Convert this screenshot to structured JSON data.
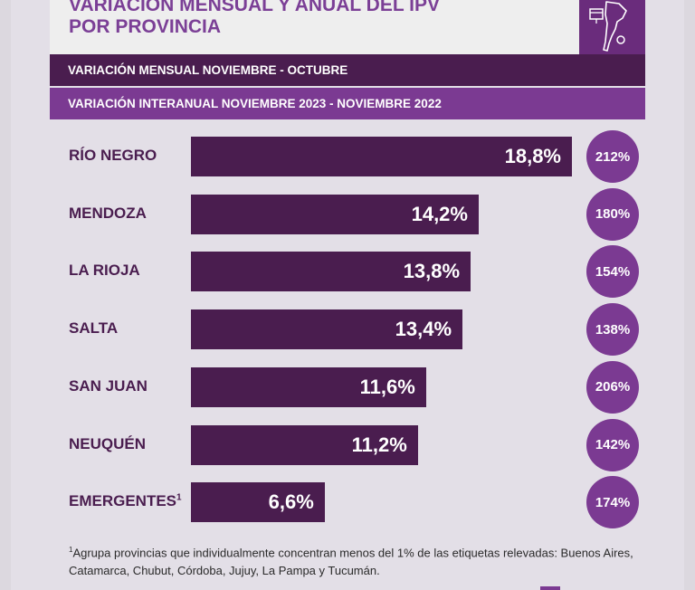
{
  "header": {
    "title": "VARIACIÓN MENSUAL Y ANUAL DEL IPV\nPOR PROVINCIA",
    "band_monthly": "VARIACIÓN MENSUAL NOVIEMBRE - OCTUBRE",
    "band_interannual": "VARIACIÓN INTERANUAL NOVIEMBRE 2023 - NOVIEMBRE 2022",
    "map_icon": "south-america-map-icon"
  },
  "colors": {
    "bar": "#4a1d4f",
    "circle": "#7b3a92",
    "title": "#7b3f96",
    "band_monthly": "#4a1d4f",
    "band_interannual": "#7b3a92"
  },
  "chart_data": {
    "type": "bar",
    "orientation": "horizontal",
    "categories": [
      "RÍO NEGRO",
      "MENDOZA",
      "LA RIOJA",
      "SALTA",
      "SAN JUAN",
      "NEUQUÉN",
      "EMERGENTES"
    ],
    "category_superscripts": [
      "",
      "",
      "",
      "",
      "",
      "",
      "1"
    ],
    "series": [
      {
        "name": "VARIACIÓN MENSUAL NOVIEMBRE - OCTUBRE",
        "values": [
          18.8,
          14.2,
          13.8,
          13.4,
          11.6,
          11.2,
          6.6
        ],
        "labels": [
          "18,8%",
          "14,2%",
          "13,8%",
          "13,4%",
          "11,6%",
          "11,2%",
          "6,6%"
        ]
      },
      {
        "name": "VARIACIÓN INTERANUAL NOVIEMBRE 2023 - NOVIEMBRE 2022",
        "values": [
          212,
          180,
          154,
          138,
          206,
          142,
          174
        ],
        "labels": [
          "212%",
          "180%",
          "154%",
          "138%",
          "206%",
          "142%",
          "174%"
        ]
      }
    ],
    "xlim": [
      0,
      18.8
    ]
  },
  "footnote": {
    "marker": "1",
    "text": "Agrupa provincias que individualmente concentran menos del 1% de las etiquetas relevadas: Buenos Aires, Catamarca, Chubut, Córdoba, Jujuy, La Pampa y Tucumán."
  }
}
